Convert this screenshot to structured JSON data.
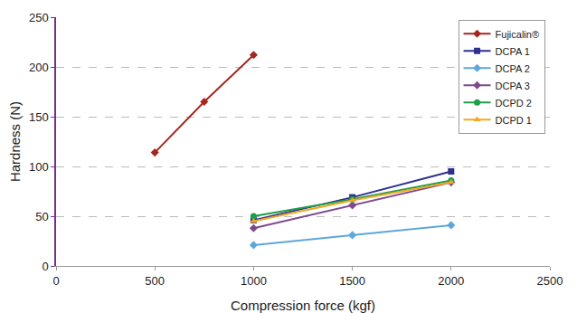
{
  "chart_data": {
    "type": "line",
    "x_label": "Compression force (kgf)",
    "y_label": "Hardness (N)",
    "xlim": [
      0,
      2500
    ],
    "xticks": [
      0,
      500,
      1000,
      1500,
      2000,
      2500
    ],
    "ylim": [
      0,
      250
    ],
    "yticks": [
      0,
      50,
      100,
      150,
      200,
      250
    ],
    "grid": true,
    "legend": "upper right",
    "series": [
      {
        "name": "Fujicalin®",
        "color": "#a3271f",
        "marker": "diamond",
        "line_style": "solid",
        "x": [
          500,
          750,
          1000
        ],
        "values": [
          114,
          165,
          212
        ]
      },
      {
        "name": "DCPA 1",
        "color": "#2e2f8f",
        "marker": "square",
        "line_style": "solid",
        "x": [
          1000,
          1500,
          2000
        ],
        "values": [
          46,
          69,
          95
        ]
      },
      {
        "name": "DCPA 2",
        "color": "#5ea7dc",
        "marker": "diamond",
        "line_style": "solid",
        "x": [
          1000,
          1500,
          2000
        ],
        "values": [
          21,
          31,
          41
        ]
      },
      {
        "name": "DCPA 3",
        "color": "#7d4a8e",
        "marker": "diamond",
        "line_style": "solid",
        "x": [
          1000,
          1500,
          2000
        ],
        "values": [
          38,
          61,
          84
        ]
      },
      {
        "name": "DCPD 2",
        "color": "#1e9e4a",
        "marker": "circle",
        "line_style": "solid",
        "x": [
          1000,
          1500,
          2000
        ],
        "values": [
          50,
          67,
          86
        ]
      },
      {
        "name": "DCPD 1",
        "color": "#f2a623",
        "marker": "triangle-up",
        "line_style": "solid",
        "x": [
          1000,
          1500,
          2000
        ],
        "values": [
          45,
          66,
          84
        ]
      }
    ]
  }
}
